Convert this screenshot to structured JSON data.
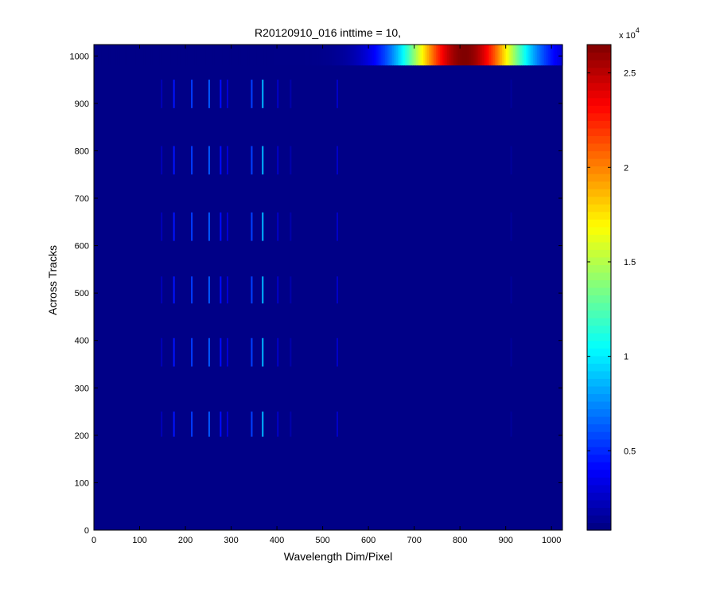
{
  "chart_data": {
    "type": "heatmap",
    "title": "R20120910_016 inttime = 10,",
    "xlabel": "Wavelength Dim/Pixel",
    "ylabel": "Across Tracks",
    "xlim": [
      0,
      1024
    ],
    "ylim": [
      0,
      1024
    ],
    "xticks": [
      0,
      100,
      200,
      300,
      400,
      500,
      600,
      700,
      800,
      900,
      1000
    ],
    "yticks": [
      0,
      100,
      200,
      300,
      400,
      500,
      600,
      700,
      800,
      900,
      1000
    ],
    "colormap": "jet",
    "clim": [
      800,
      26500
    ],
    "colorbar": {
      "ticks": [
        "0.5",
        "1",
        "1.5",
        "2",
        "2.5"
      ],
      "tick_values": [
        5000,
        10000,
        15000,
        20000,
        25000
      ],
      "exponent_base": "x 10",
      "exponent_power": "4"
    },
    "background_value": 1000,
    "bright_band": {
      "y_range": [
        980,
        1024
      ],
      "x_center": 810,
      "x_sigma": 95,
      "peak": 26500
    },
    "tracks": [
      {
        "y_center": 920,
        "y_range": [
          890,
          950
        ]
      },
      {
        "y_center": 780,
        "y_range": [
          750,
          810
        ]
      },
      {
        "y_center": 640,
        "y_range": [
          610,
          670
        ]
      },
      {
        "y_center": 505,
        "y_range": [
          478,
          535
        ]
      },
      {
        "y_center": 375,
        "y_range": [
          345,
          405
        ]
      },
      {
        "y_center": 220,
        "y_range": [
          197,
          250
        ]
      }
    ],
    "spectral_lines": [
      {
        "x": 148,
        "value": 2200
      },
      {
        "x": 175,
        "value": 4500
      },
      {
        "x": 214,
        "value": 5500
      },
      {
        "x": 252,
        "value": 6200
      },
      {
        "x": 277,
        "value": 4300
      },
      {
        "x": 292,
        "value": 3000
      },
      {
        "x": 345,
        "value": 5600
      },
      {
        "x": 369,
        "value": 8600
      },
      {
        "x": 402,
        "value": 2600
      },
      {
        "x": 430,
        "value": 1900
      },
      {
        "x": 532,
        "value": 2600
      },
      {
        "x": 912,
        "value": 1500
      }
    ]
  }
}
